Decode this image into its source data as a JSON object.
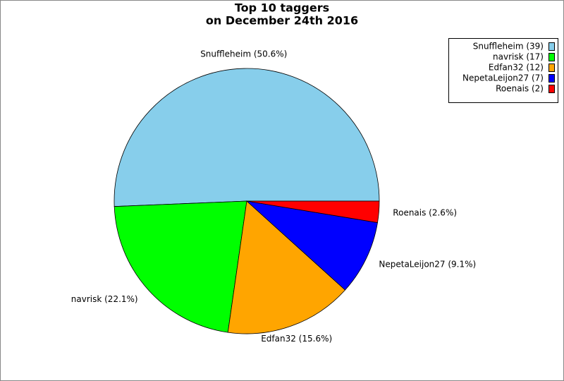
{
  "chart_data": {
    "type": "pie",
    "title": "Top 10 taggers",
    "subtitle": "on December 24th 2016",
    "values": [
      39,
      17,
      12,
      7,
      2
    ],
    "colors": [
      "#87ceeb",
      "#00ff00",
      "#ffa500",
      "#0000ff",
      "#ff0000"
    ],
    "slice_labels": [
      "Snuffleheim (50.6%)",
      "navrisk (22.1%)",
      "Edfan32 (15.6%)",
      "NepetaLeijon27 (9.1%)",
      "Roenais (2.6%)"
    ],
    "legend_labels": [
      "Snuffleheim (39)",
      "navrisk (17)",
      "Edfan32 (12)",
      "NepetaLeijon27 (7)",
      "Roenais (2)"
    ],
    "legend": "top-right"
  }
}
